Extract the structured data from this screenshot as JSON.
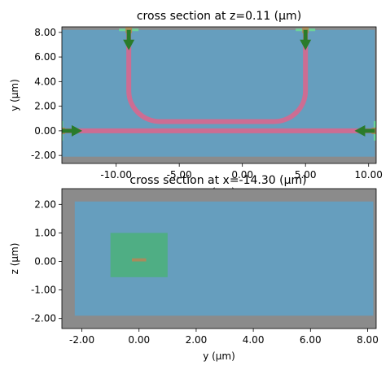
{
  "colors": {
    "background_gray": "#8b8b8b",
    "domain_blue": "#669ebe",
    "waveguide_pink": "#cc6d93",
    "source_green": "#2a7b2a",
    "source_light_green": "#6dd29a",
    "box_green": "#4caf7d",
    "core_brown": "#a98b5c",
    "axes_edge": "#000000"
  },
  "chart_data": [
    {
      "type": "heatmap",
      "title": "cross section at z=0.11 (μm)",
      "xlabel": "x (μm)",
      "ylabel": "y (μm)",
      "xlim": [
        -14.3,
        10.6
      ],
      "ylim": [
        -2.65,
        8.45
      ],
      "xticks": [
        -10.0,
        -5.0,
        0.0,
        5.0,
        10.0
      ],
      "xtick_labels": [
        "-10.00",
        "-5.00",
        "0.00",
        "5.00",
        "10.00"
      ],
      "yticks": [
        -2.0,
        0.0,
        2.0,
        4.0,
        6.0,
        8.0
      ],
      "ytick_labels": [
        "-2.00",
        "0.00",
        "2.00",
        "4.00",
        "6.00",
        "8.00"
      ],
      "regions": {
        "simulation_domain": {
          "x": [
            -14.3,
            10.5
          ],
          "y": [
            -2.1,
            8.2
          ]
        }
      },
      "waveguides": {
        "straight": {
          "x": [
            -14.3,
            10.6
          ],
          "y": 0.0
        },
        "bend_left_x": -9.0,
        "bend_right_x": 5.0,
        "bend_bottom_y": 0.75,
        "bend_top_y": 8.2,
        "bend_radius": 2.5
      },
      "sources": [
        {
          "name": "left",
          "at": [
            -14.3,
            0.0
          ],
          "direction": "+x"
        },
        {
          "name": "right",
          "at": [
            10.5,
            0.0
          ],
          "direction": "-x"
        },
        {
          "name": "top-left",
          "at": [
            -9.0,
            8.2
          ],
          "direction": "-y"
        },
        {
          "name": "top-right",
          "at": [
            5.0,
            8.2
          ],
          "direction": "-y"
        }
      ]
    },
    {
      "type": "heatmap",
      "title": "cross section at x=-14.30 (μm)",
      "xlabel": "y (μm)",
      "ylabel": "z (μm)",
      "xlim": [
        -2.7,
        8.3
      ],
      "ylim": [
        -2.35,
        2.55
      ],
      "xticks": [
        -2.0,
        0.0,
        2.0,
        4.0,
        6.0,
        8.0
      ],
      "xtick_labels": [
        "-2.00",
        "0.00",
        "2.00",
        "4.00",
        "6.00",
        "8.00"
      ],
      "yticks": [
        -2.0,
        -1.0,
        0.0,
        1.0,
        2.0
      ],
      "ytick_labels": [
        "-2.00",
        "-1.00",
        "0.00",
        "1.00",
        "2.00"
      ],
      "regions": {
        "simulation_domain": {
          "x": [
            -2.25,
            8.2
          ],
          "y": [
            -1.9,
            2.1
          ]
        },
        "source_plane": {
          "x": [
            -1.0,
            1.0
          ],
          "y": [
            -0.55,
            1.0
          ]
        },
        "waveguide_core": {
          "x": [
            -0.25,
            0.25
          ],
          "y": [
            0.0,
            0.11
          ]
        }
      }
    }
  ]
}
